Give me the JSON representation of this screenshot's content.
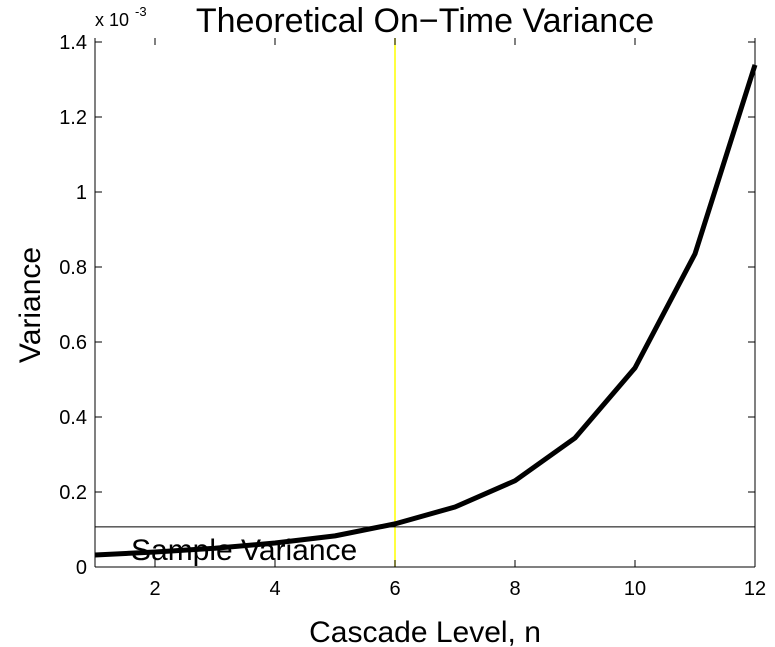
{
  "chart_data": {
    "type": "line",
    "title": "Theoretical On−Time Variance",
    "xlabel": "Cascade Level, n",
    "ylabel": "Variance",
    "exponent_base": "x 10",
    "exponent_power": "-3",
    "x": [
      1,
      2,
      3,
      4,
      5,
      6,
      7,
      8,
      9,
      10,
      11,
      12
    ],
    "values": [
      0.032,
      0.04,
      0.05,
      0.064,
      0.083,
      0.115,
      0.16,
      0.23,
      0.344,
      0.531,
      0.835,
      1.339
    ],
    "color": "#000000",
    "xlim": [
      1,
      12
    ],
    "xticks": [
      2,
      4,
      6,
      8,
      10,
      12
    ],
    "ylim": [
      0,
      1.4
    ],
    "yticks": [
      0,
      0.2,
      0.4,
      0.6,
      0.8,
      1,
      1.2,
      1.4
    ],
    "hlines": [
      {
        "value": 0.107,
        "label": "Sample Variance",
        "color": "#000000"
      }
    ],
    "vlines": [
      {
        "value": 6,
        "color": "#ffff00"
      }
    ]
  }
}
